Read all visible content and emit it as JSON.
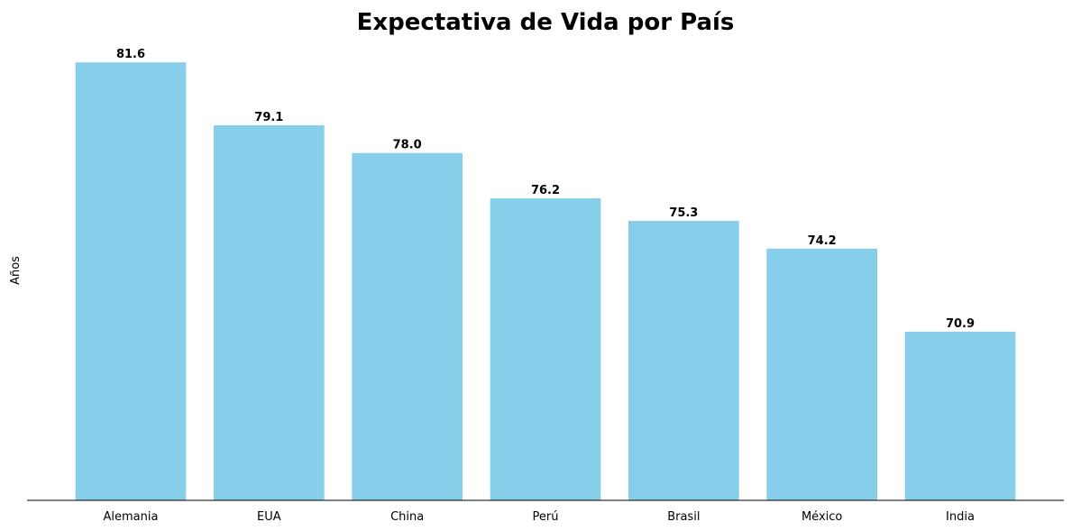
{
  "chart_data": {
    "type": "bar",
    "title": "Expectativa de Vida por País",
    "xlabel": "",
    "ylabel": "Años",
    "categories": [
      "Alemania",
      "EUA",
      "China",
      "Perú",
      "Brasil",
      "México",
      "India"
    ],
    "values": [
      81.6,
      79.1,
      78.0,
      76.2,
      75.3,
      74.2,
      70.9
    ],
    "data_labels": [
      "81.6",
      "79.1",
      "78.0",
      "76.2",
      "75.3",
      "74.2",
      "70.9"
    ],
    "ylim": [
      64.2,
      82.0
    ],
    "bar_color": "#87ceeb",
    "grid": false,
    "y_ticks_visible": false
  }
}
